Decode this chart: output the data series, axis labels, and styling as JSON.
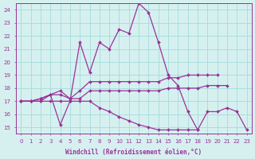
{
  "xlabel": "Windchill (Refroidissement éolien,°C)",
  "xlim": [
    -0.5,
    23.5
  ],
  "ylim": [
    14.5,
    24.5
  ],
  "yticks": [
    15,
    16,
    17,
    18,
    19,
    20,
    21,
    22,
    23,
    24
  ],
  "xticks": [
    0,
    1,
    2,
    3,
    4,
    5,
    6,
    7,
    8,
    9,
    10,
    11,
    12,
    13,
    14,
    15,
    16,
    17,
    18,
    19,
    20,
    21,
    22,
    23
  ],
  "background_color": "#d6f0f0",
  "line_color": "#993399",
  "grid_color": "#aadddd",
  "lines": [
    {
      "x": [
        0,
        1,
        2,
        3,
        4,
        5,
        6,
        7,
        8,
        9,
        10,
        11,
        12,
        13,
        14,
        15,
        16,
        17,
        18,
        19,
        20,
        21
      ],
      "y": [
        17.0,
        17.0,
        17.0,
        17.5,
        15.2,
        17.0,
        21.5,
        19.2,
        21.5,
        21.0,
        22.5,
        22.2,
        24.5,
        23.8,
        21.5,
        19.0,
        18.2,
        16.2,
        14.8,
        null,
        null,
        null
      ]
    },
    {
      "x": [
        0,
        1,
        2,
        3,
        4,
        5,
        6,
        7,
        8,
        9,
        10,
        11,
        12,
        13,
        14,
        15,
        16,
        17,
        18,
        19,
        20
      ],
      "y": [
        17.0,
        17.0,
        17.2,
        17.5,
        17.8,
        17.2,
        17.8,
        18.5,
        18.5,
        18.5,
        18.5,
        18.5,
        18.5,
        18.5,
        18.5,
        18.8,
        18.8,
        19.0,
        19.0,
        19.0,
        19.0
      ]
    },
    {
      "x": [
        0,
        1,
        2,
        3,
        4,
        5,
        6,
        7,
        8,
        9,
        10,
        11,
        12,
        13,
        14,
        15,
        16,
        17,
        18,
        19,
        20,
        21
      ],
      "y": [
        17.0,
        17.0,
        17.2,
        17.5,
        17.5,
        17.2,
        17.2,
        17.8,
        17.8,
        17.8,
        17.8,
        17.8,
        17.8,
        17.8,
        17.8,
        18.0,
        18.0,
        18.0,
        18.0,
        18.2,
        18.2,
        18.2
      ]
    },
    {
      "x": [
        0,
        1,
        2,
        3,
        4,
        5,
        6,
        7,
        8,
        9,
        10,
        11,
        12,
        13,
        14,
        15,
        16,
        17,
        18,
        19,
        20,
        21,
        22,
        23
      ],
      "y": [
        17.0,
        17.0,
        17.0,
        17.0,
        17.0,
        17.0,
        17.0,
        17.0,
        16.5,
        16.2,
        15.8,
        15.5,
        15.2,
        15.0,
        14.8,
        14.8,
        14.8,
        14.8,
        14.8,
        16.2,
        16.2,
        16.5,
        16.2,
        14.8
      ]
    }
  ]
}
